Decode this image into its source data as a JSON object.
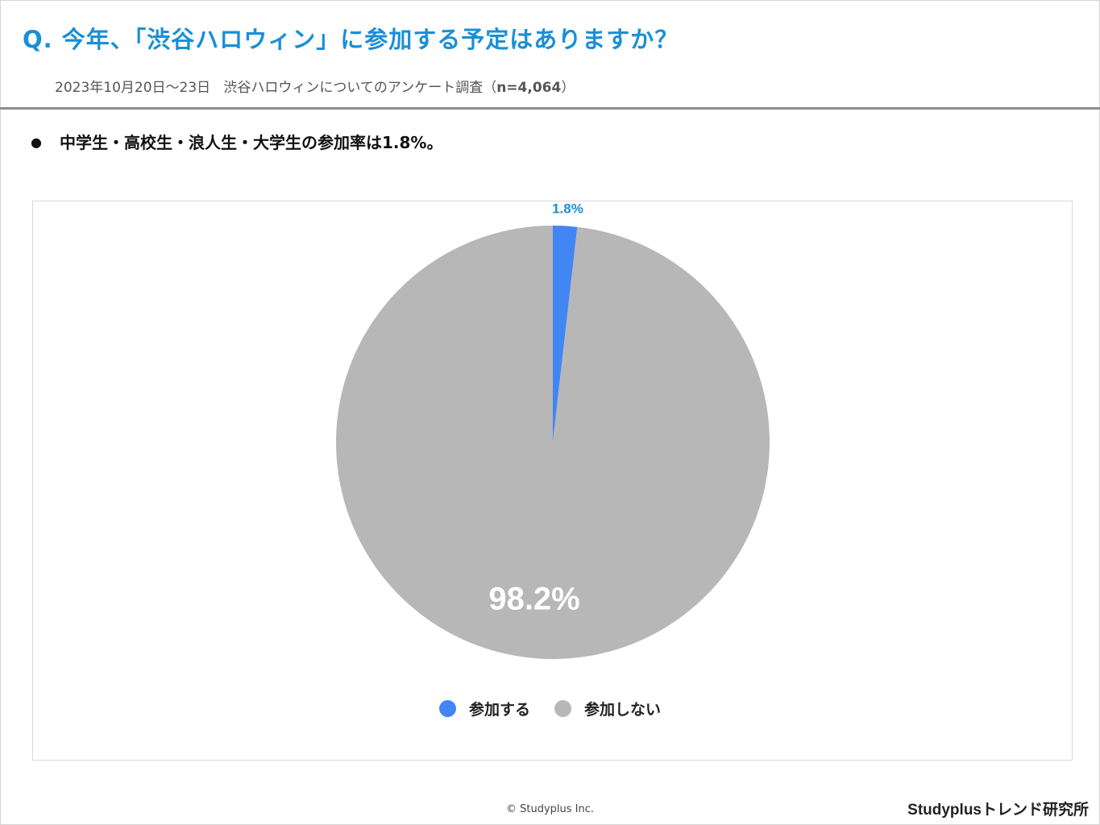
{
  "header": {
    "title": "Q. 今年、「渋谷ハロウィン」に参加する予定はありますか？",
    "subtitle_period": "2023年10月20日〜23日",
    "subtitle_desc": "渋谷ハロウィンについてのアンケート調査（",
    "subtitle_n": "n=4,064",
    "subtitle_close": "）"
  },
  "bullet": {
    "symbol": "●",
    "text": "中学生・高校生・浪人生・大学生の参加率は1.8%。"
  },
  "chart_data": {
    "type": "pie",
    "categories": [
      "参加する",
      "参加しない"
    ],
    "values": [
      1.8,
      98.2
    ],
    "data_labels": [
      "1.8%",
      "98.2%"
    ],
    "colors": [
      "#4285f4",
      "#b7b7b7"
    ],
    "label_colors": [
      "#1a8fd6",
      "#ffffff"
    ],
    "legend_position": "bottom"
  },
  "footer": {
    "copyright": "© Studyplus Inc.",
    "brand": "Studyplusトレンド研究所"
  }
}
